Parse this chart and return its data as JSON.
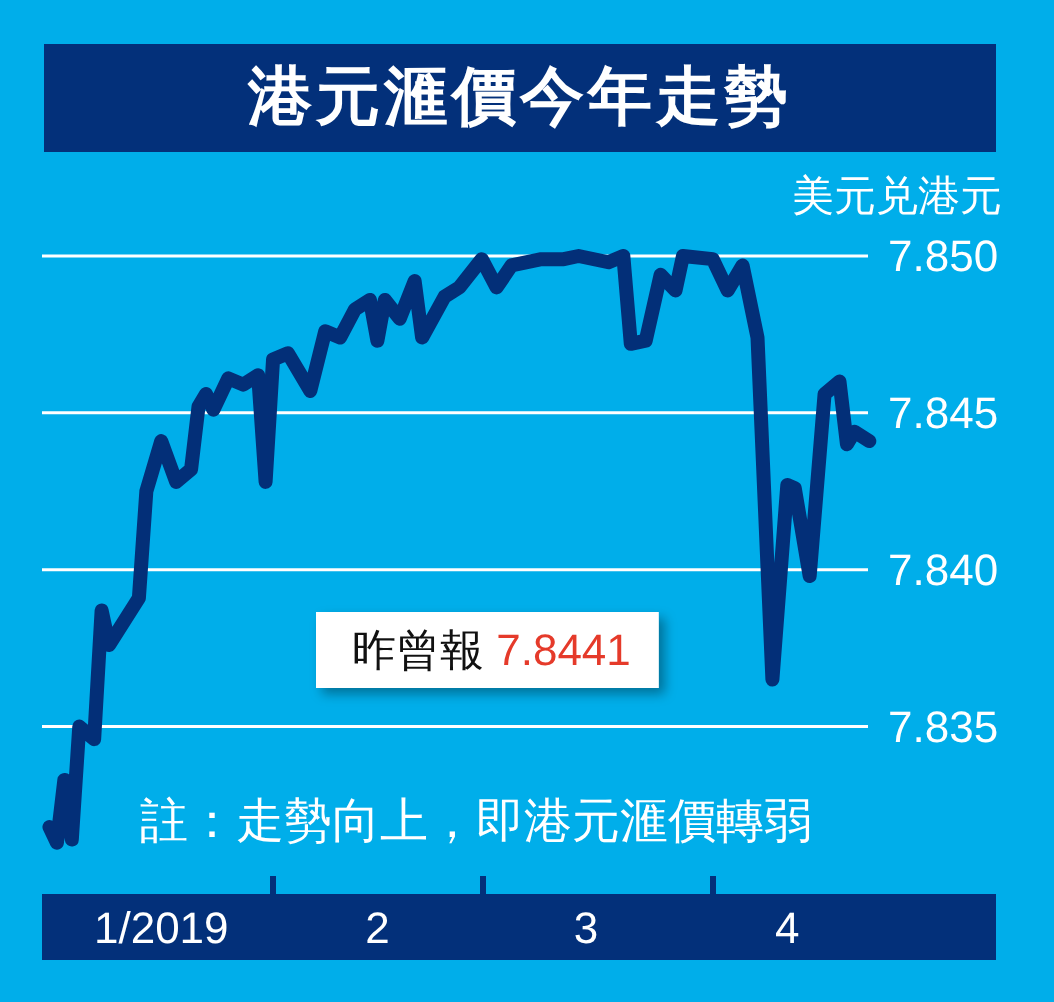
{
  "chart_data": {
    "type": "line",
    "title": "港元滙價今年走勢",
    "ylabel": "美元兑港元",
    "annotations": [
      "昨曾報 7.8441",
      "註：走勢向上，即港元滙價轉弱"
    ],
    "x": [
      "2019-01-02",
      "2019-01-03",
      "2019-01-04",
      "2019-01-05",
      "2019-01-06",
      "2019-01-08",
      "2019-01-09",
      "2019-01-10",
      "2019-01-14",
      "2019-01-15",
      "2019-01-17",
      "2019-01-19",
      "2019-01-21",
      "2019-01-22",
      "2019-01-23",
      "2019-01-24",
      "2019-01-26",
      "2019-01-28",
      "2019-01-30",
      "2019-01-31",
      "2019-02-01",
      "2019-02-03",
      "2019-02-06",
      "2019-02-08",
      "2019-02-10",
      "2019-02-12",
      "2019-02-14",
      "2019-02-15",
      "2019-02-16",
      "2019-02-18",
      "2019-02-20",
      "2019-02-21",
      "2019-02-24",
      "2019-02-26",
      "2019-03-01",
      "2019-03-03",
      "2019-03-05",
      "2019-03-09",
      "2019-03-12",
      "2019-03-14",
      "2019-03-18",
      "2019-03-20",
      "2019-03-21",
      "2019-03-23",
      "2019-03-25",
      "2019-03-27",
      "2019-03-28",
      "2019-04-01",
      "2019-04-03",
      "2019-04-05",
      "2019-04-07",
      "2019-04-09",
      "2019-04-11",
      "2019-04-12",
      "2019-04-14",
      "2019-04-16",
      "2019-04-18",
      "2019-04-19",
      "2019-04-20",
      "2019-04-22"
    ],
    "series": [
      {
        "color": "#032f78",
        "values": [
          7.8318,
          7.8313,
          7.8333,
          7.8314,
          7.835,
          7.8346,
          7.8387,
          7.8376,
          7.8391,
          7.8425,
          7.8441,
          7.8428,
          7.8432,
          7.8452,
          7.8456,
          7.8451,
          7.8461,
          7.8459,
          7.8462,
          7.8428,
          7.8467,
          7.8469,
          7.8457,
          7.8476,
          7.8474,
          7.8483,
          7.8486,
          7.8473,
          7.8486,
          7.848,
          7.8492,
          7.8474,
          7.8487,
          7.849,
          7.8499,
          7.849,
          7.8497,
          7.8499,
          7.8499,
          7.85,
          7.8498,
          7.85,
          7.8472,
          7.8473,
          7.8494,
          7.8489,
          7.85,
          7.8499,
          7.8489,
          7.8497,
          7.8474,
          7.8365,
          7.8427,
          7.8426,
          7.8398,
          7.8456,
          7.846,
          7.844,
          7.8444,
          7.8441
        ]
      }
    ],
    "xlim": [
      "2019-01-01",
      "2019-05-09"
    ],
    "xticks": [
      {
        "value": "2019-01-17",
        "label": "1/2019"
      },
      {
        "value": "2019-02-01",
        "label": null
      },
      {
        "value": "2019-02-15",
        "label": "2"
      },
      {
        "value": "2019-03-01",
        "label": null
      },
      {
        "value": "2019-03-15",
        "label": "3"
      },
      {
        "value": "2019-04-01",
        "label": null
      },
      {
        "value": "2019-04-11",
        "label": "4"
      }
    ],
    "ylim": [
      7.8296,
      7.85
    ],
    "yticks": [
      {
        "value": 7.835,
        "label": "7.835"
      },
      {
        "value": 7.84,
        "label": "7.840"
      },
      {
        "value": 7.845,
        "label": "7.845"
      },
      {
        "value": 7.85,
        "label": "7.850"
      }
    ],
    "grid": "y"
  }
}
